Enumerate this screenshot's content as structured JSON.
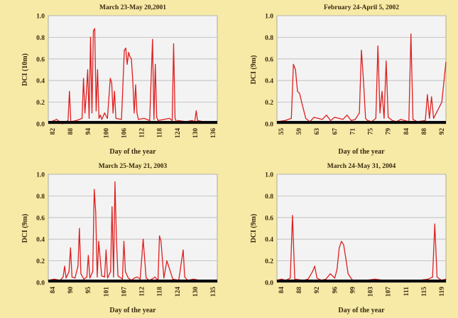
{
  "figure": {
    "background": "#f6eaa6",
    "plot_background": "#f3f3f3",
    "line_color": "#e01e1e",
    "baseline_color": "#0a0a0a",
    "grid_color": "#b8b8b8"
  },
  "chart_data": [
    {
      "type": "line",
      "title": "March 23-May 20,2001",
      "xlabel": "Day of the year",
      "ylabel": "DCI (10m)",
      "xlim": [
        81,
        141
      ],
      "ylim": [
        0,
        1.0
      ],
      "yticks": [
        "0.0",
        "0.2",
        "0.4",
        "0.6",
        "0.8",
        "1.0"
      ],
      "xticks": [
        "82",
        "88",
        "94",
        "100",
        "106",
        "112",
        "118",
        "124",
        "130",
        "136"
      ],
      "grid": true,
      "series": [
        {
          "x": [
            82,
            84,
            85,
            86,
            88,
            88.5,
            89,
            91,
            93,
            93.5,
            94,
            94.5,
            95,
            95.5,
            96,
            96.5,
            97,
            97.5,
            98,
            98.5,
            99,
            99.5,
            100,
            101,
            102,
            103,
            103.5,
            104,
            104.5,
            105,
            107,
            108,
            108.5,
            109,
            109.5,
            110,
            110.5,
            111,
            111.5,
            112,
            112.5,
            113,
            115,
            117,
            118,
            118.5,
            119,
            119.5,
            120,
            122,
            124,
            125,
            125.5,
            126,
            126.5,
            127,
            130,
            132,
            133,
            133.5,
            134,
            136,
            138,
            140
          ],
          "y": [
            0.02,
            0.04,
            0.02,
            0.0,
            0.03,
            0.3,
            0.02,
            0.03,
            0.05,
            0.42,
            0.1,
            0.28,
            0.5,
            0.05,
            0.8,
            0.1,
            0.86,
            0.88,
            0.12,
            0.5,
            0.05,
            0.08,
            0.04,
            0.1,
            0.05,
            0.42,
            0.38,
            0.1,
            0.3,
            0.05,
            0.04,
            0.68,
            0.7,
            0.55,
            0.66,
            0.62,
            0.6,
            0.4,
            0.1,
            0.36,
            0.1,
            0.04,
            0.05,
            0.03,
            0.78,
            0.04,
            0.55,
            0.06,
            0.03,
            0.04,
            0.05,
            0.03,
            0.74,
            0.05,
            0.02,
            0.03,
            0.02,
            0.03,
            0.02,
            0.12,
            0.03,
            0.02,
            0.02,
            0.01
          ]
        }
      ]
    },
    {
      "type": "line",
      "title": "February 24-April 5, 2002",
      "xlabel": "Day of the year",
      "ylabel": "DCI (9m)",
      "xlim": [
        55,
        96
      ],
      "ylim": [
        0,
        1.0
      ],
      "yticks": [
        "0.0",
        "0.2",
        "0.4",
        "0.6",
        "0.8",
        "1.0"
      ],
      "xticks": [
        "55",
        "59",
        "63",
        "67",
        "71",
        "75",
        "79",
        "84",
        "88",
        "92"
      ],
      "grid": true,
      "series": [
        {
          "x": [
            55,
            57,
            58.5,
            59,
            59.5,
            60,
            60.5,
            61,
            62,
            63,
            64,
            66,
            67,
            68,
            69,
            70,
            71,
            72,
            73,
            74,
            75,
            75.5,
            76,
            76.5,
            77,
            78,
            79,
            79.5,
            80,
            80.5,
            81,
            81.5,
            82,
            83,
            84,
            85,
            86,
            87,
            87.5,
            88,
            89,
            91,
            91.5,
            92,
            92.5,
            93,
            95,
            96
          ],
          "y": [
            0.02,
            0.03,
            0.05,
            0.55,
            0.5,
            0.3,
            0.28,
            0.2,
            0.05,
            0.02,
            0.06,
            0.04,
            0.08,
            0.03,
            0.06,
            0.05,
            0.04,
            0.08,
            0.03,
            0.04,
            0.1,
            0.68,
            0.4,
            0.05,
            0.03,
            0.02,
            0.05,
            0.72,
            0.1,
            0.3,
            0.05,
            0.58,
            0.06,
            0.03,
            0.02,
            0.04,
            0.03,
            0.02,
            0.83,
            0.04,
            0.02,
            0.03,
            0.27,
            0.05,
            0.25,
            0.05,
            0.2,
            0.57
          ]
        }
      ]
    },
    {
      "type": "line",
      "title": "March 25-May 21, 2003",
      "xlabel": "Day of the year",
      "ylabel": "DCI (9m)",
      "xlim": [
        84,
        141
      ],
      "ylim": [
        0,
        1.0
      ],
      "yticks": [
        "0.0",
        "0.2",
        "0.4",
        "0.6",
        "0.8",
        "1.0"
      ],
      "xticks": [
        "84",
        "90",
        "95",
        "101",
        "107",
        "112",
        "118",
        "124",
        "130",
        "135"
      ],
      "grid": true,
      "series": [
        {
          "x": [
            84,
            86,
            88,
            89,
            89.5,
            90,
            91,
            91.5,
            92,
            93,
            94,
            94.5,
            95,
            96,
            97,
            97.5,
            98,
            99,
            99.5,
            100,
            100.5,
            101,
            102,
            103,
            103.5,
            104,
            105,
            105.5,
            106,
            106.5,
            107,
            107.5,
            108,
            109,
            109.5,
            110,
            111,
            112,
            113,
            114,
            115,
            116,
            117,
            118,
            119,
            120,
            121,
            121.5,
            122,
            123,
            124,
            126,
            128,
            129.5,
            130,
            131,
            133,
            135,
            138,
            140
          ],
          "y": [
            0.02,
            0.03,
            0.02,
            0.05,
            0.15,
            0.04,
            0.1,
            0.32,
            0.05,
            0.04,
            0.15,
            0.5,
            0.08,
            0.03,
            0.05,
            0.25,
            0.04,
            0.1,
            0.86,
            0.65,
            0.05,
            0.38,
            0.06,
            0.05,
            0.3,
            0.04,
            0.1,
            0.7,
            0.05,
            0.93,
            0.4,
            0.06,
            0.05,
            0.03,
            0.38,
            0.1,
            0.04,
            0.02,
            0.04,
            0.05,
            0.03,
            0.4,
            0.04,
            0.02,
            0.03,
            0.05,
            0.02,
            0.43,
            0.38,
            0.04,
            0.2,
            0.03,
            0.02,
            0.3,
            0.05,
            0.02,
            0.03,
            0.02,
            0.02,
            0.01
          ]
        }
      ]
    },
    {
      "type": "line",
      "title": "March 24-May 31, 2004",
      "xlabel": "Day of the year",
      "ylabel": "DCI (9m)",
      "xlim": [
        83,
        121
      ],
      "ylim": [
        0,
        1.0
      ],
      "yticks": [
        "0.0",
        "0.2",
        "0.4",
        "0.6",
        "0.8",
        "1.0"
      ],
      "xticks": [
        "84",
        "88",
        "92",
        "96",
        "99",
        "103",
        "107",
        "111",
        "115",
        "119"
      ],
      "grid": true,
      "series": [
        {
          "x": [
            83,
            84,
            85,
            86,
            86.5,
            87,
            89,
            90,
            91,
            91.5,
            92,
            93,
            94,
            95,
            96,
            96.5,
            97,
            97.5,
            98,
            98.5,
            99,
            99.5,
            100,
            101,
            103,
            105,
            107,
            109,
            111,
            113,
            115,
            117,
            118,
            118.5,
            119,
            120,
            121
          ],
          "y": [
            0.02,
            0.03,
            0.02,
            0.04,
            0.62,
            0.03,
            0.02,
            0.03,
            0.1,
            0.15,
            0.04,
            0.02,
            0.03,
            0.08,
            0.04,
            0.12,
            0.32,
            0.38,
            0.35,
            0.22,
            0.08,
            0.05,
            0.02,
            0.01,
            0.02,
            0.03,
            0.02,
            0.02,
            0.01,
            0.02,
            0.02,
            0.03,
            0.05,
            0.54,
            0.05,
            0.02,
            0.03
          ]
        }
      ]
    }
  ]
}
